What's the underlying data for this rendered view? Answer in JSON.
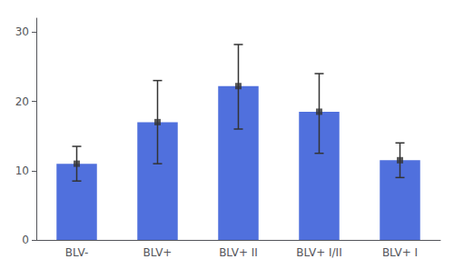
{
  "chart_data": {
    "type": "bar",
    "categories": [
      "BLV-",
      "BLV+",
      "BLV+ II",
      "BLV+ I/II",
      "BLV+ I"
    ],
    "values": [
      11.0,
      17.0,
      22.2,
      18.5,
      11.5
    ],
    "errors_lower": [
      2.5,
      6.0,
      6.2,
      6.0,
      2.5
    ],
    "errors_upper": [
      2.5,
      6.0,
      6.0,
      5.5,
      2.5
    ],
    "marker": "square",
    "ylim": [
      0,
      32
    ],
    "yticks": [
      0,
      10,
      20,
      30
    ],
    "grid": false
  }
}
